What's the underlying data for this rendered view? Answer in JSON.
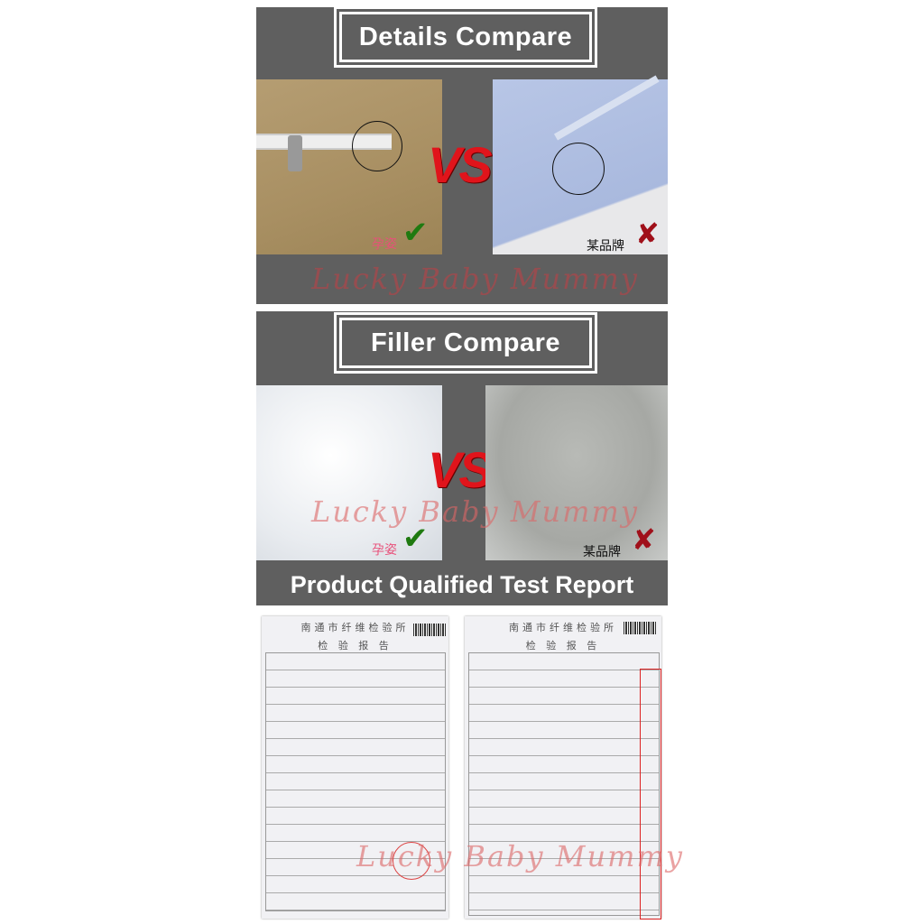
{
  "details": {
    "title": "Details Compare",
    "vs": "VS",
    "good_label": "孕姿",
    "bad_label": "某品牌",
    "watermark": "Lucky Baby Mummy"
  },
  "filler": {
    "title": "Filler Compare",
    "vs": "VS",
    "good_label": "孕姿",
    "bad_label": "某品牌",
    "watermark": "Lucky Baby Mummy"
  },
  "report": {
    "title": "Product Qualified Test Report",
    "doc_org": "南通市纤维检验所",
    "doc_title": "检 验 报 告",
    "watermark": "Lucky Baby Mummy"
  },
  "colors": {
    "panel": "#5f5f5f",
    "vs": "#e0141b",
    "check": "#1f7a10",
    "cross": "#a0101a",
    "watermark": "#a04a4e"
  },
  "icons": {
    "good": "green-check-icon",
    "bad": "red-cross-icon"
  }
}
